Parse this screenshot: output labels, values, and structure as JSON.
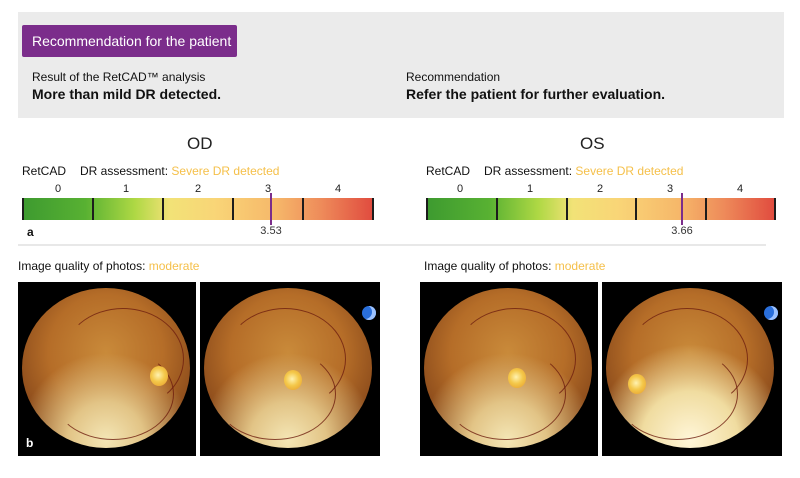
{
  "recommendation_panel": {
    "title": "Recommendation for the patient",
    "result_label": "Result of the RetCAD™ analysis",
    "result_value": "More than mild DR detected.",
    "recommendation_label": "Recommendation",
    "recommendation_value": "Refer the patient for further evaluation."
  },
  "od": {
    "heading": "OD",
    "app": "RetCAD",
    "assessment_label": "DR assessment:",
    "assessment_value": "Severe DR detected",
    "scale": [
      "0",
      "1",
      "2",
      "3",
      "4"
    ],
    "score": "3.53",
    "score_fraction": 0.706,
    "quality_label": "Image quality of photos:",
    "quality_value": "moderate"
  },
  "os": {
    "heading": "OS",
    "app": "RetCAD",
    "assessment_label": "DR assessment:",
    "assessment_value": "Severe DR detected",
    "scale": [
      "0",
      "1",
      "2",
      "3",
      "4"
    ],
    "score": "3.66",
    "score_fraction": 0.732,
    "quality_label": "Image quality of photos:",
    "quality_value": "moderate"
  },
  "panel_tags": {
    "a": "a",
    "b": "b"
  },
  "colors": {
    "accent": "#7b2d8b",
    "highlight": "#f5c04a"
  },
  "icons": [
    "fundus-camera-logo-icon"
  ]
}
